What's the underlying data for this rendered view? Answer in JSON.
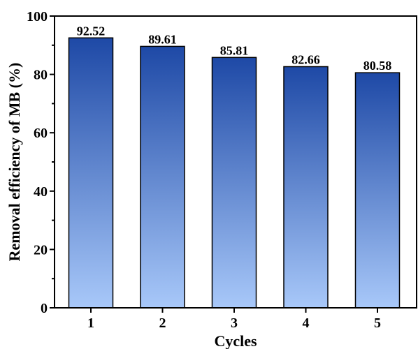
{
  "chart_data": {
    "type": "bar",
    "categories": [
      "1",
      "2",
      "3",
      "4",
      "5"
    ],
    "values": [
      92.52,
      89.61,
      85.81,
      82.66,
      80.58
    ],
    "data_labels": [
      "92.52",
      "89.61",
      "85.81",
      "82.66",
      "80.58"
    ],
    "xlabel": "Cycles",
    "ylabel": "Removal efficiency of MB (%)",
    "ylim": [
      0,
      100
    ],
    "yticks": [
      0,
      20,
      40,
      60,
      80,
      100
    ],
    "ytick_labels": [
      "0",
      "20",
      "40",
      "60",
      "80",
      "100"
    ],
    "grid": false,
    "legend": "none",
    "colors": {
      "bar_top": "#1e49a6",
      "bar_bottom": "#a8c8f9",
      "bar_edge": "#000000",
      "axis": "#000000"
    }
  }
}
